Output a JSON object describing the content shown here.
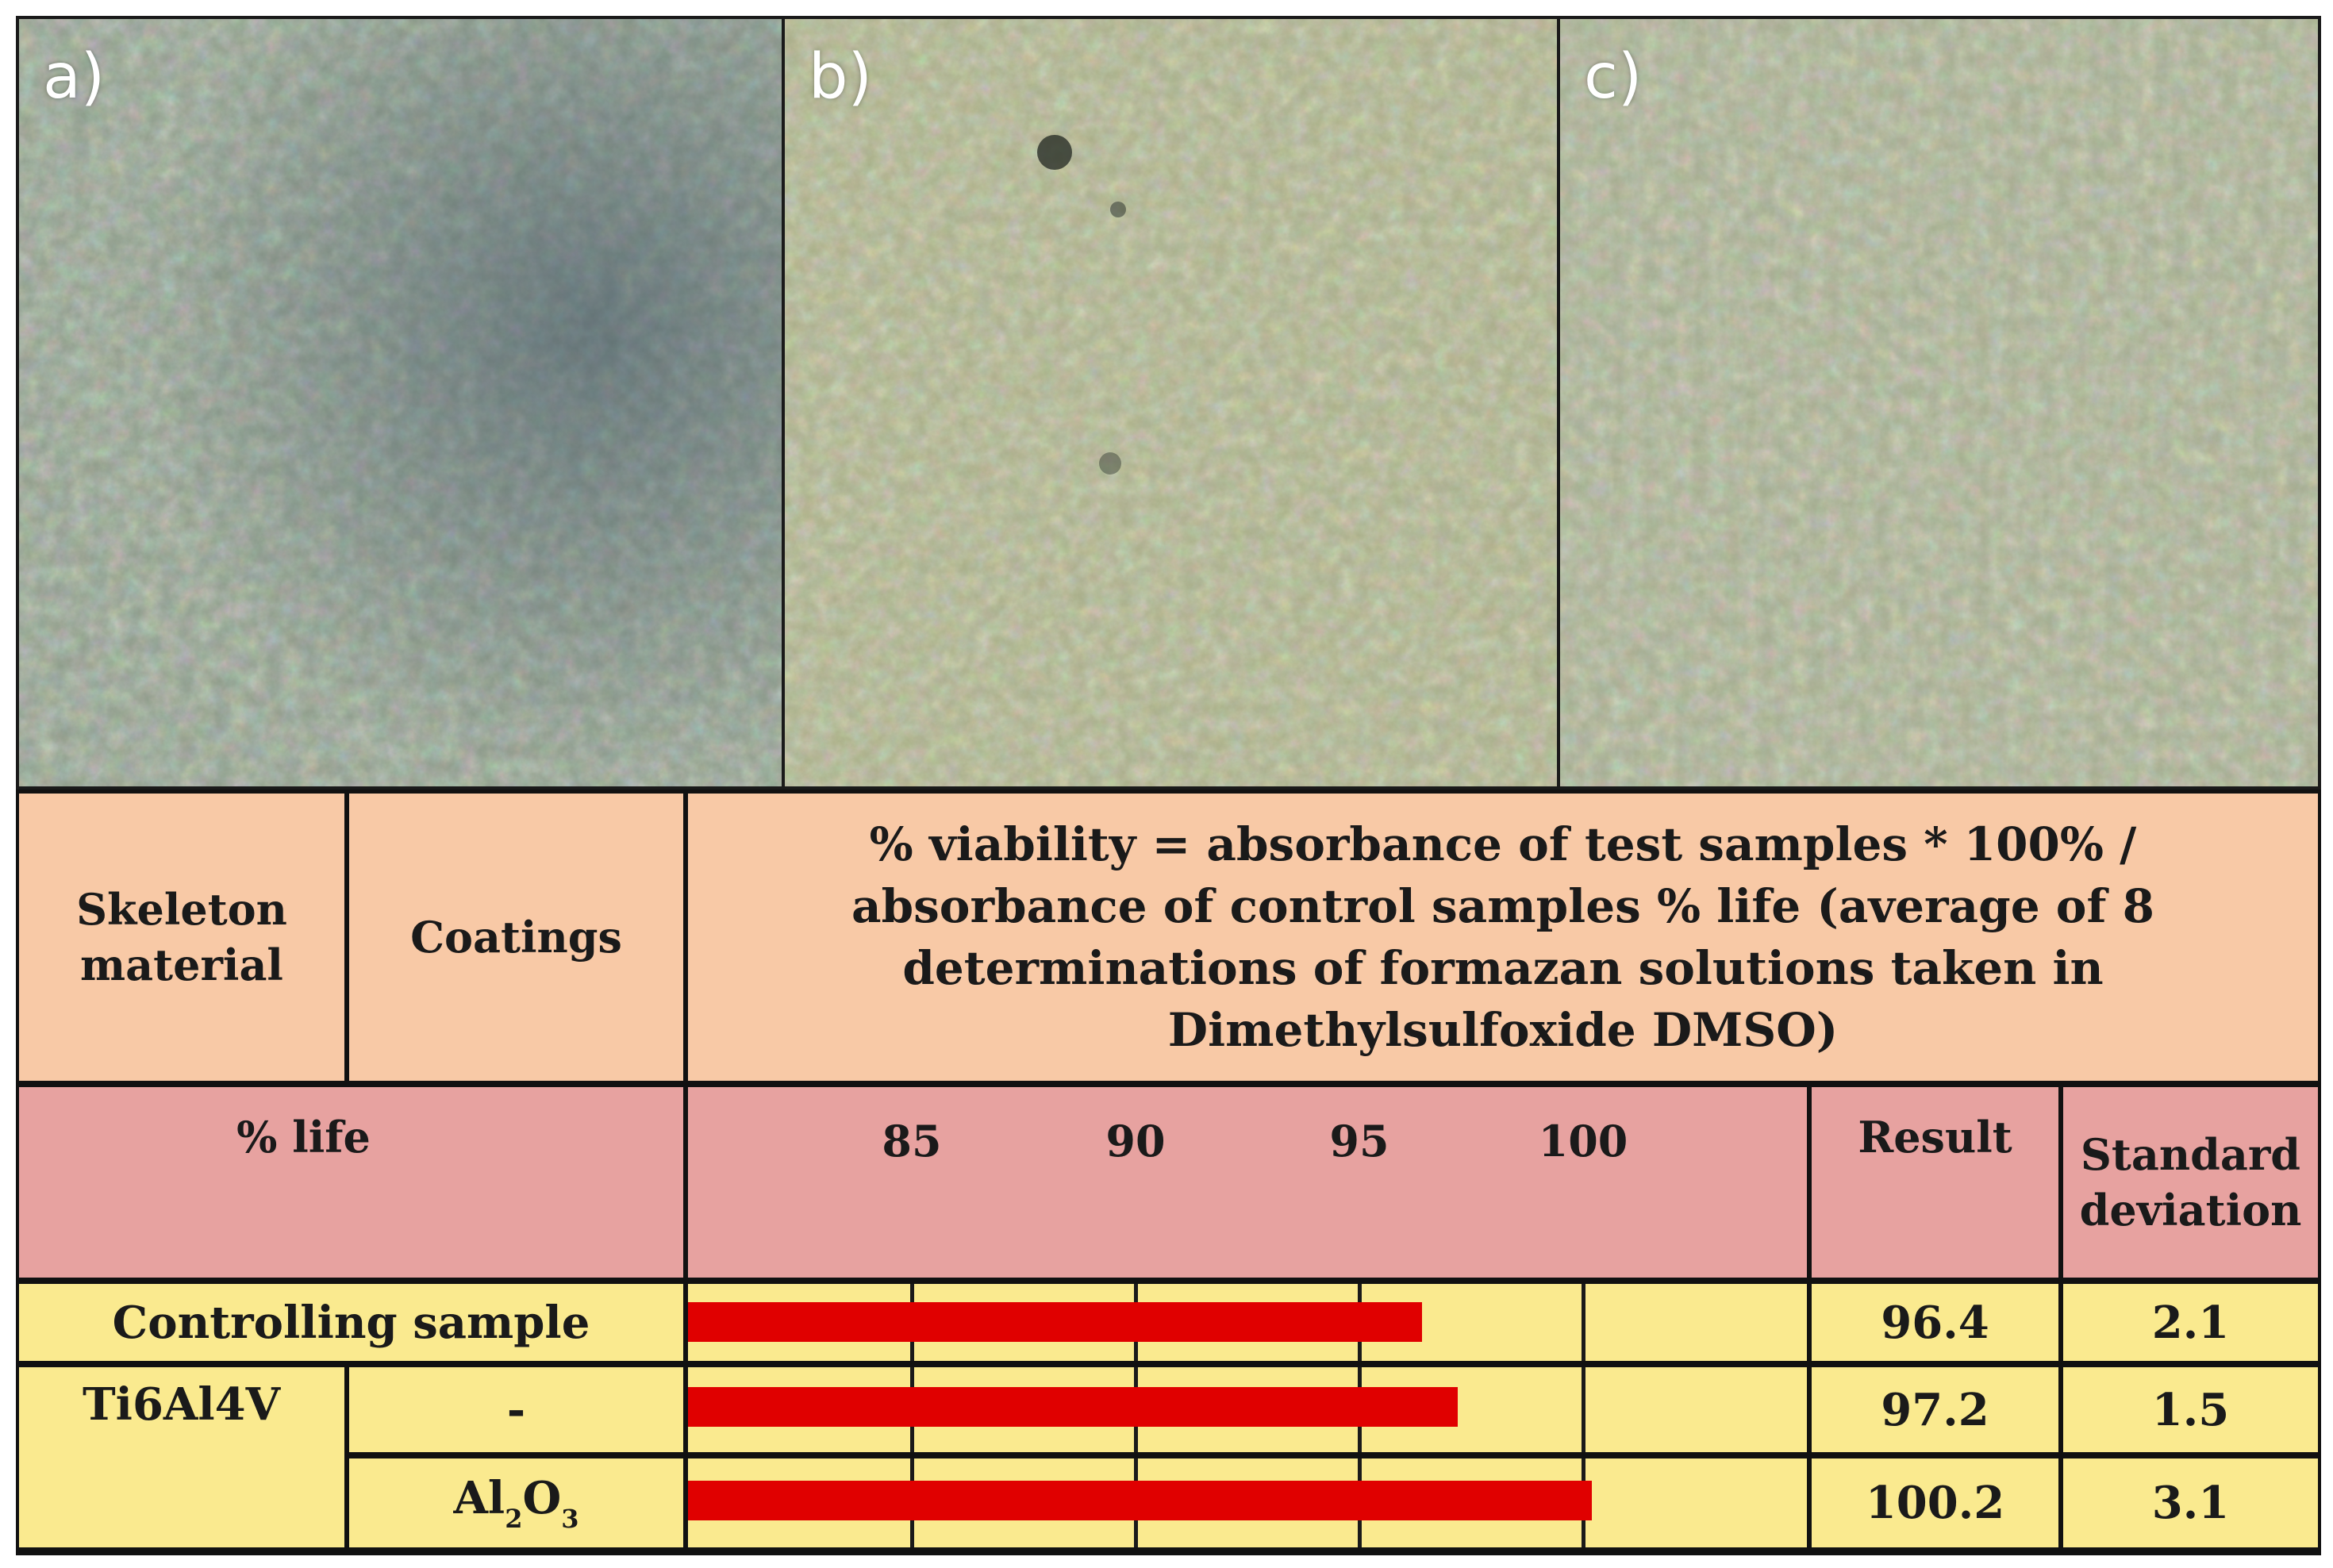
{
  "panels": [
    {
      "label": "a)",
      "tone": "#8a9a8c"
    },
    {
      "label": "b)",
      "tone": "#a6ad8a"
    },
    {
      "label": "c)",
      "tone": "#a3ab90"
    }
  ],
  "table": {
    "header": {
      "skeleton": "Skeleton material",
      "coatings": "Coatings",
      "formula": [
        "% viability = absorbance of test samples * 100% /",
        "absorbance of control samples % life (average of 8",
        "determinations of formazan solutions taken in",
        "Dimethylsulfoxide DMSO)"
      ]
    },
    "subheader": {
      "life": "% life",
      "ticks": [
        "85",
        "90",
        "95",
        "100"
      ],
      "result": "Result",
      "std": [
        "Standard",
        "deviation"
      ]
    },
    "rows": [
      {
        "label": "Controlling sample",
        "result": "96.4",
        "std": "2.1"
      },
      {
        "material": "Ti6Al4V",
        "coating": "-",
        "result": "97.2",
        "std": "1.5"
      },
      {
        "coating_main": "Al",
        "coating_sub1": "2",
        "coating_o": "O",
        "coating_sub2": "3",
        "result": "100.2",
        "std": "3.1"
      }
    ]
  },
  "chart_data": {
    "type": "bar",
    "categories": [
      "Controlling sample",
      "Ti6Al4V -",
      "Ti6Al4V Al2O3"
    ],
    "values": [
      96.4,
      97.2,
      100.2
    ],
    "xlim": [
      80,
      105
    ],
    "tick_values": [
      85,
      90,
      95,
      100
    ],
    "bar_color": "#e00000"
  }
}
